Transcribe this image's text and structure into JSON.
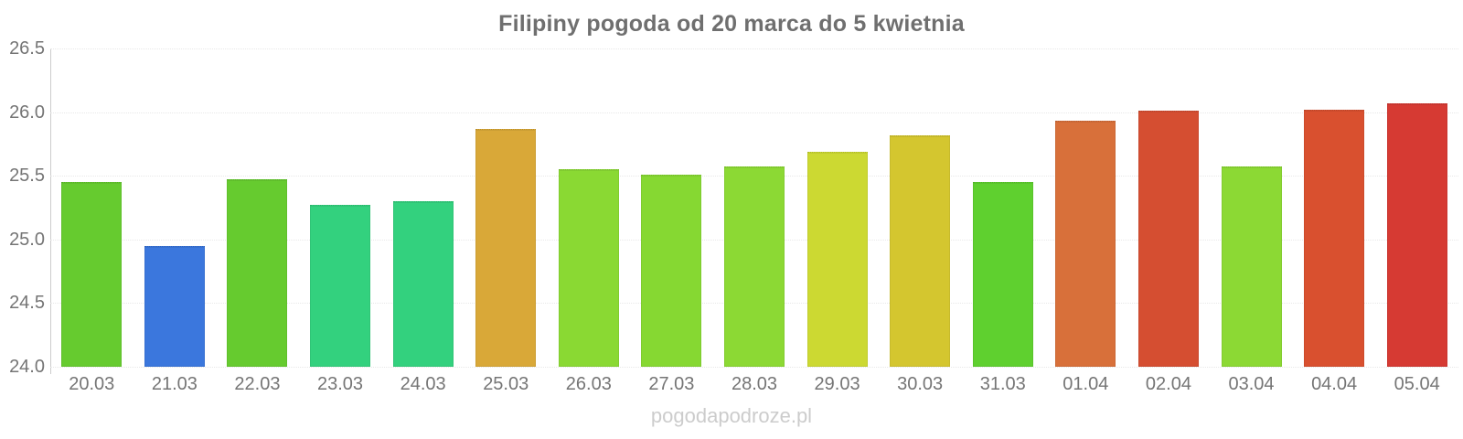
{
  "title": "Filipiny pogoda od 20 marca do 5 kwietnia",
  "watermark": "pogodapodroze.pl",
  "colors": {
    "title_text": "#6f6f6f",
    "axis_text": "#757575",
    "axis_line": "#cccccc",
    "gridline": "#e8e8e8",
    "watermark_text": "#cccccc"
  },
  "chart_data": {
    "type": "bar",
    "title": "Filipiny pogoda od 20 marca do 5 kwietnia",
    "xlabel": "",
    "ylabel": "",
    "ylim": [
      24.0,
      26.5
    ],
    "yticks": [
      "26.5",
      "26.0",
      "25.5",
      "25.0",
      "24.5",
      "24.0"
    ],
    "grid": true,
    "legend_position": "none",
    "categories": [
      "20.03",
      "21.03",
      "22.03",
      "23.03",
      "24.03",
      "25.03",
      "26.03",
      "27.03",
      "28.03",
      "29.03",
      "30.03",
      "31.03",
      "01.04",
      "02.04",
      "03.04",
      "04.04",
      "05.04"
    ],
    "values": [
      25.45,
      24.95,
      25.47,
      25.27,
      25.3,
      25.87,
      25.55,
      25.51,
      25.57,
      25.69,
      25.82,
      25.45,
      25.93,
      26.01,
      25.57,
      26.02,
      26.07
    ],
    "bar_colors": [
      "#66cb2f",
      "#3b77dd",
      "#66cb2f",
      "#33d17e",
      "#33d17e",
      "#d9a838",
      "#8ad933",
      "#86d832",
      "#8cd934",
      "#ccd932",
      "#d4c62f",
      "#5fd02f",
      "#d8703a",
      "#d54e31",
      "#8cd934",
      "#d9502f",
      "#d63a33"
    ]
  }
}
